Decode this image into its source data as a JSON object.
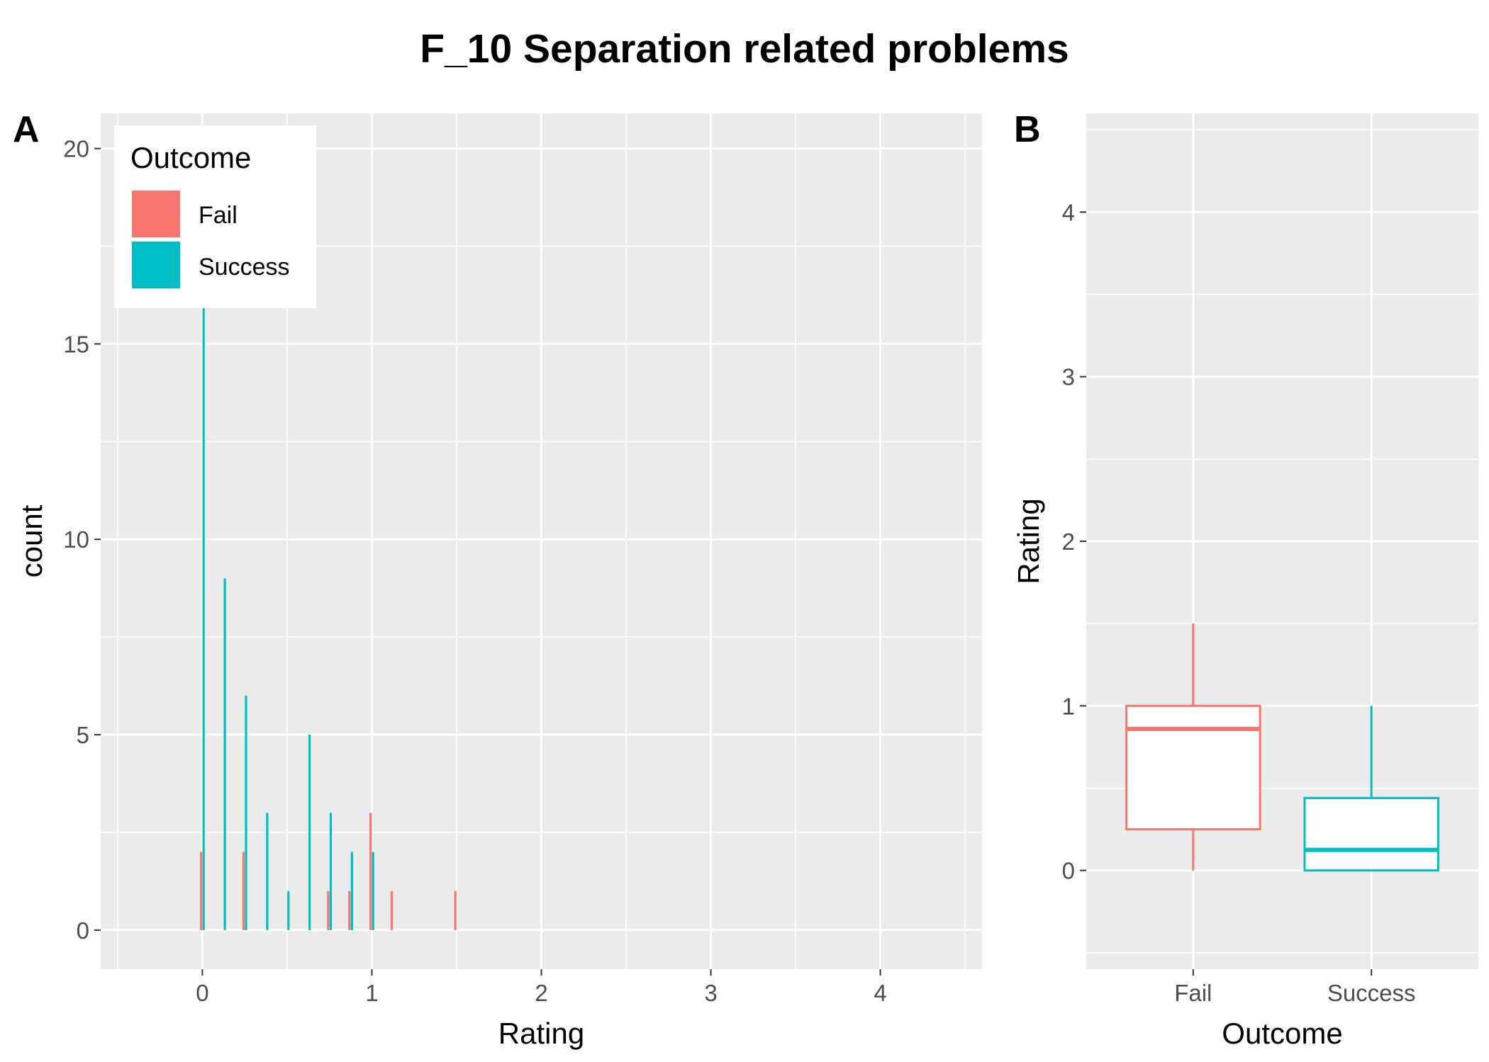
{
  "title": "F_10 Separation related problems",
  "chart_data": [
    {
      "panel": "A",
      "type": "bar",
      "subtype": "histogram-dodged",
      "xlabel": "Rating",
      "ylabel": "count",
      "xlim": [
        -0.6,
        4.6
      ],
      "ylim": [
        -1,
        20.9
      ],
      "x_ticks": [
        0,
        1,
        2,
        3,
        4
      ],
      "y_ticks": [
        0,
        5,
        10,
        15,
        20
      ],
      "grid": true,
      "legend": {
        "title": "Outcome",
        "position": "top-left",
        "entries": [
          {
            "label": "Fail",
            "color": "#F8766D"
          },
          {
            "label": "Success",
            "color": "#00BFC4"
          }
        ]
      },
      "series": [
        {
          "name": "Fail",
          "color": "#F8766D",
          "x": [
            0,
            0.25,
            0.75,
            0.875,
            1,
            1.125,
            1.5
          ],
          "values": [
            2,
            2,
            1,
            1,
            3,
            1,
            1
          ]
        },
        {
          "name": "Success",
          "color": "#00BFC4",
          "x": [
            0,
            0.125,
            0.25,
            0.375,
            0.5,
            0.625,
            0.75,
            0.875,
            1
          ],
          "values": [
            16,
            9,
            6,
            3,
            1,
            5,
            3,
            2,
            2
          ]
        }
      ]
    },
    {
      "panel": "B",
      "type": "boxplot",
      "xlabel": "Outcome",
      "ylabel": "Rating",
      "categories": [
        "Fail",
        "Success"
      ],
      "ylim": [
        -0.6,
        4.6
      ],
      "y_ticks": [
        0,
        1,
        2,
        3,
        4
      ],
      "grid": true,
      "boxes": [
        {
          "name": "Fail",
          "color": "#F8766D",
          "min": 0,
          "q1": 0.25,
          "median": 0.86,
          "q3": 1,
          "max": 1.5
        },
        {
          "name": "Success",
          "color": "#00BFC4",
          "min": 0,
          "q1": 0,
          "median": 0.125,
          "q3": 0.44,
          "max": 1
        }
      ]
    }
  ]
}
